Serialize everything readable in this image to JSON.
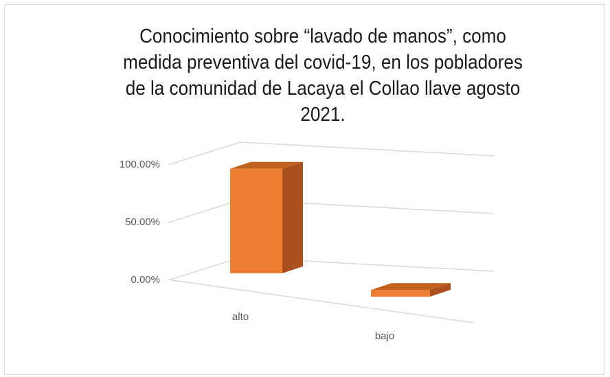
{
  "chart_data": {
    "type": "bar3d",
    "title": "Conocimiento sobre “lavado de manos”, como\nmedida preventiva  del covid-19, en los pobladores\nde la comunidad de Lacaya el Collao llave agosto\n2021.",
    "categories": [
      "alto",
      "bajo"
    ],
    "values": [
      94,
      6
    ],
    "color": "#ed7d31",
    "ylim": [
      0,
      100
    ],
    "yticks": [
      {
        "value": 0,
        "label": "0.00%"
      },
      {
        "value": 50,
        "label": "50.00%"
      },
      {
        "value": 100,
        "label": "100.00%"
      }
    ],
    "grid": true
  }
}
